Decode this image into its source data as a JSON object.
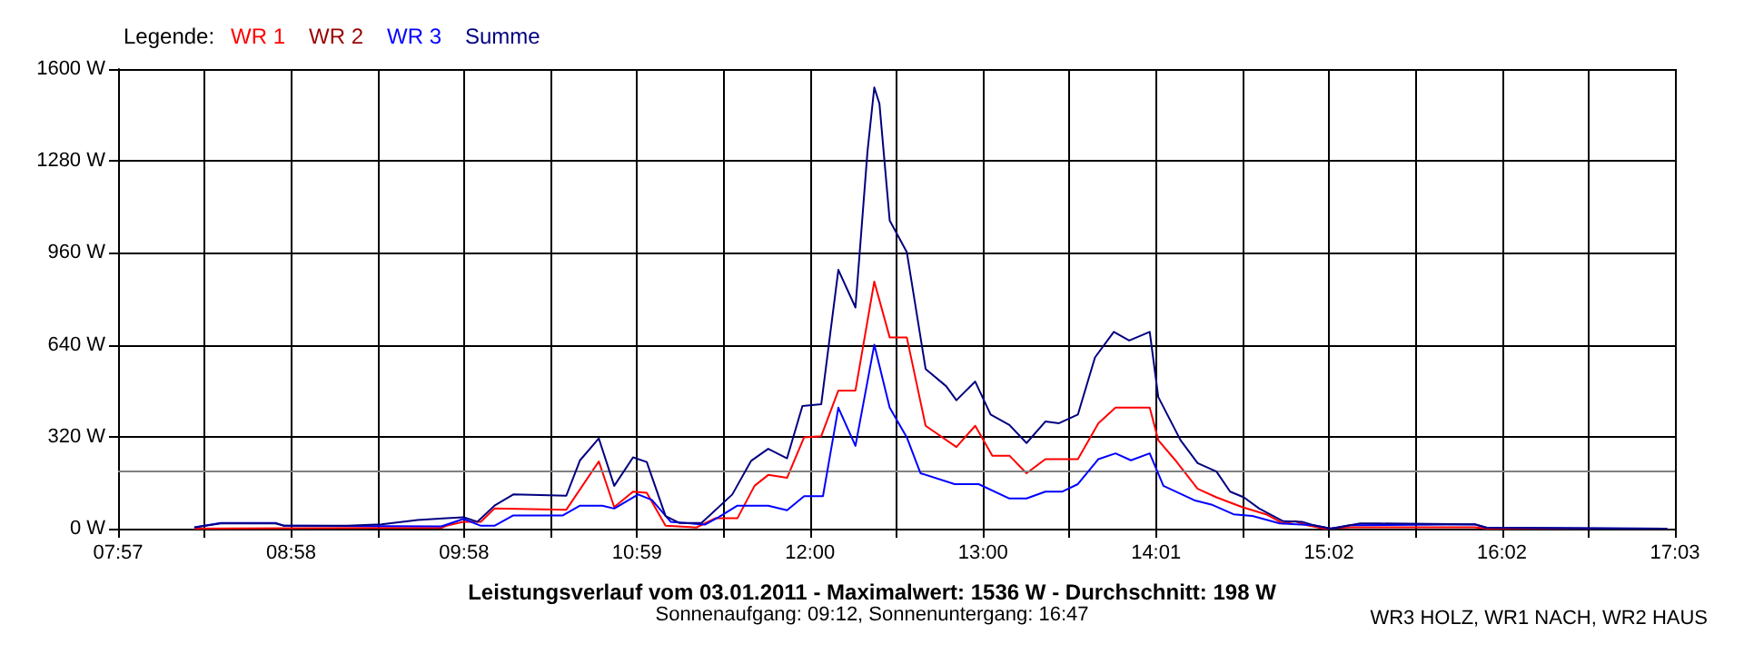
{
  "chart_data": {
    "type": "line",
    "title": "Leistungsverlauf vom 03.01.2011 - Maximalwert: 1536 W - Durchschnitt: 198 W",
    "subtitle": "Sonnenaufgang: 09:12, Sonnenuntergang: 16:47",
    "legend_title": "Legende:",
    "legend": "top left",
    "grid": true,
    "marker": "none",
    "line_style": "solid",
    "annotations": [
      "WR3 HOLZ, WR1 NACH, WR2 HAUS"
    ],
    "xlim": [
      7.95,
      17.05
    ],
    "xticks": [
      {
        "value": 7.95,
        "label": "07:57"
      },
      {
        "value": 8.4556,
        "label": null
      },
      {
        "value": 8.9611,
        "label": "08:58"
      },
      {
        "value": 9.4667,
        "label": null
      },
      {
        "value": 9.9722,
        "label": "09:58"
      },
      {
        "value": 10.4778,
        "label": null
      },
      {
        "value": 10.9833,
        "label": "10:59"
      },
      {
        "value": 11.4889,
        "label": null
      },
      {
        "value": 11.9944,
        "label": "12:00"
      },
      {
        "value": 12.5,
        "label": null
      },
      {
        "value": 13.0056,
        "label": "13:00"
      },
      {
        "value": 13.5111,
        "label": null
      },
      {
        "value": 14.0167,
        "label": "14:01"
      },
      {
        "value": 14.5222,
        "label": null
      },
      {
        "value": 15.0278,
        "label": "15:02"
      },
      {
        "value": 15.5333,
        "label": null
      },
      {
        "value": 16.0389,
        "label": "16:02"
      },
      {
        "value": 16.5444,
        "label": null
      },
      {
        "value": 17.05,
        "label": "17:03"
      }
    ],
    "ylim": [
      0,
      1600
    ],
    "yticks": [
      {
        "value": 0,
        "label": "0 W"
      },
      {
        "value": 320,
        "label": "320 W"
      },
      {
        "value": 640,
        "label": "640 W"
      },
      {
        "value": 960,
        "label": "960 W"
      },
      {
        "value": 1280,
        "label": "1280 W"
      },
      {
        "value": 1600,
        "label": "1600 W"
      }
    ],
    "ref_lines": [
      {
        "axis": "y",
        "value": 198,
        "color": "#808080"
      }
    ],
    "series": [
      {
        "name": "WR 1",
        "color": "#ff0000",
        "x": [
          8.4,
          9.84,
          9.87,
          9.97,
          10.07,
          10.15,
          10.57,
          10.76,
          10.85,
          10.96,
          11.04,
          11.15,
          11.33,
          11.44,
          11.57,
          11.67,
          11.75,
          11.86,
          11.96,
          12.06,
          12.16,
          12.26,
          12.37,
          12.46,
          12.56,
          12.67,
          12.85,
          12.96,
          13.06,
          13.16,
          13.26,
          13.37,
          13.56,
          13.68,
          13.78,
          13.98,
          14.03,
          14.13,
          14.26,
          14.37,
          14.52,
          14.66,
          14.76,
          14.83,
          14.9,
          15.0,
          15.15,
          15.88,
          15.95,
          17.0
        ],
        "values": [
          0,
          3,
          10,
          24,
          24,
          70,
          66,
          234,
          75,
          129,
          125,
          10,
          4,
          36,
          36,
          149,
          187,
          177,
          318,
          322,
          481,
          481,
          860,
          666,
          666,
          358,
          284,
          358,
          254,
          254,
          193,
          242,
          242,
          367,
          421,
          421,
          308,
          238,
          139,
          109,
          75,
          50,
          18,
          26,
          12,
          0,
          5,
          5,
          0,
          0
        ]
      },
      {
        "name": "WR 2",
        "color": "#990000"
      },
      {
        "name": "WR 3",
        "color": "#0000ff",
        "x": [
          8.4,
          8.55,
          8.87,
          8.92,
          9.84,
          9.97,
          10.07,
          10.15,
          10.26,
          10.55,
          10.65,
          10.78,
          10.85,
          10.99,
          11.07,
          11.18,
          11.38,
          11.46,
          11.57,
          11.75,
          11.86,
          11.96,
          12.07,
          12.16,
          12.26,
          12.37,
          12.46,
          12.56,
          12.64,
          12.84,
          12.98,
          13.16,
          13.26,
          13.37,
          13.47,
          13.56,
          13.68,
          13.78,
          13.87,
          13.98,
          14.06,
          14.24,
          14.34,
          14.47,
          14.58,
          14.74,
          14.94,
          15.04,
          15.15,
          15.88,
          15.95,
          17.0
        ],
        "values": [
          5,
          20,
          20,
          10,
          8,
          34,
          10,
          10,
          46,
          46,
          80,
          80,
          70,
          119,
          100,
          24,
          14,
          40,
          80,
          80,
          64,
          113,
          113,
          421,
          288,
          640,
          421,
          318,
          193,
          155,
          155,
          105,
          105,
          129,
          129,
          155,
          242,
          262,
          238,
          262,
          149,
          99,
          84,
          50,
          44,
          18,
          12,
          0,
          12,
          15,
          3,
          0
        ]
      },
      {
        "name": "Summe",
        "color": "#000080",
        "x": [
          8.4,
          8.55,
          8.87,
          8.92,
          9.29,
          9.49,
          9.7,
          9.87,
          9.97,
          10.05,
          10.15,
          10.26,
          10.57,
          10.65,
          10.76,
          10.85,
          10.96,
          11.04,
          11.15,
          11.23,
          11.36,
          11.54,
          11.65,
          11.75,
          11.86,
          11.95,
          12.06,
          12.16,
          12.26,
          12.33,
          12.37,
          12.4,
          12.46,
          12.56,
          12.67,
          12.79,
          12.85,
          12.96,
          13.05,
          13.16,
          13.26,
          13.37,
          13.45,
          13.56,
          13.66,
          13.77,
          13.86,
          13.98,
          14.03,
          14.16,
          14.26,
          14.37,
          14.45,
          14.53,
          14.62,
          14.76,
          14.87,
          14.95,
          15.04,
          15.15,
          15.21,
          15.32,
          15.88,
          15.95,
          17.0
        ],
        "values": [
          5,
          18,
          18,
          10,
          10,
          15,
          30,
          36,
          40,
          24,
          80,
          119,
          115,
          238,
          314,
          149,
          248,
          232,
          44,
          20,
          20,
          119,
          236,
          278,
          245,
          427,
          433,
          901,
          770,
          1311,
          1536,
          1480,
          1073,
          963,
          556,
          496,
          447,
          512,
          397,
          361,
          298,
          373,
          367,
          397,
          596,
          685,
          655,
          685,
          458,
          308,
          228,
          199,
          129,
          109,
          70,
          26,
          24,
          10,
          0,
          12,
          18,
          18,
          15,
          3,
          0
        ]
      }
    ]
  }
}
